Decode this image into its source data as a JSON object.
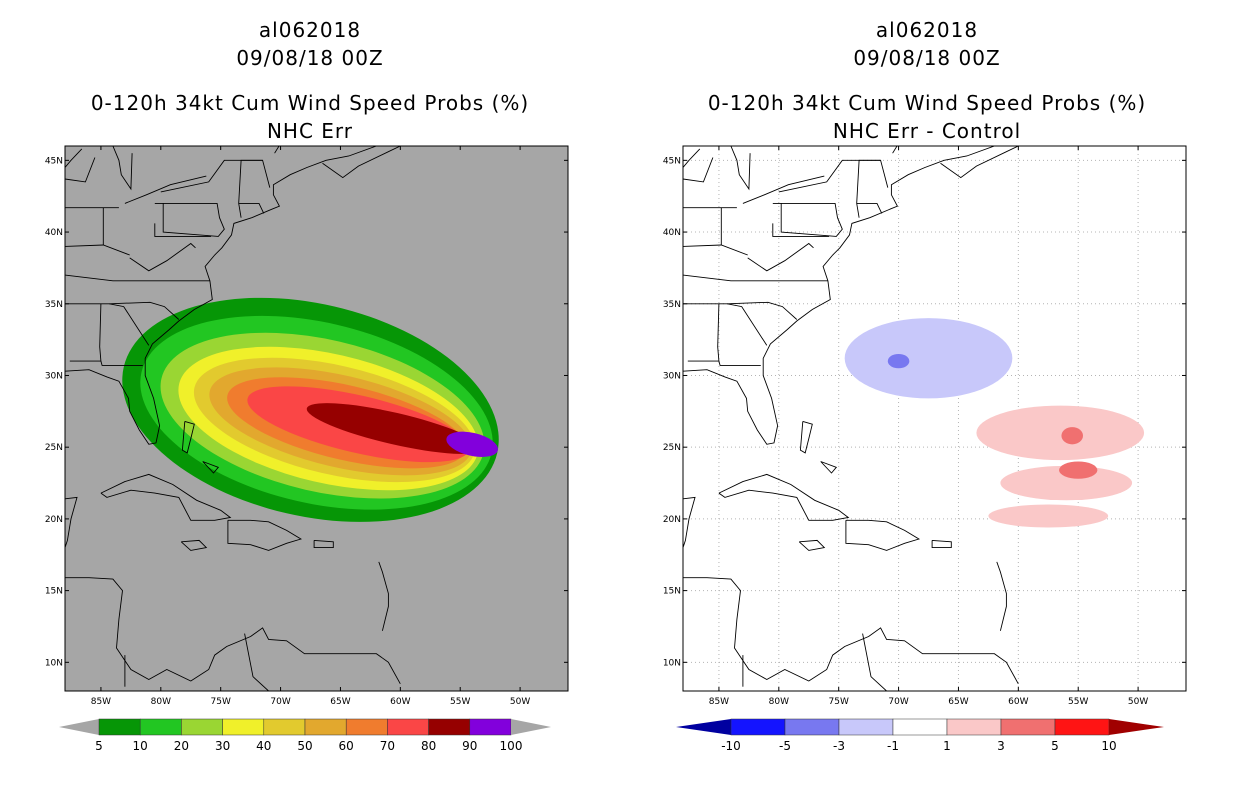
{
  "colors": {
    "land_sea_bg": "#a6a6a6",
    "map_border": "#000000",
    "diff_bg": "#ffffff"
  },
  "chart_data": [
    {
      "type": "heatmap",
      "storm_id": "al062018",
      "date": "09/08/18 00Z",
      "title": "0-120h 34kt Cum Wind Speed Probs (%)",
      "subtitle": "NHC Err",
      "x_ticks": [
        "85W",
        "80W",
        "75W",
        "70W",
        "65W",
        "60W",
        "55W",
        "50W"
      ],
      "y_ticks": [
        "45N",
        "40N",
        "35N",
        "30N",
        "25N",
        "20N",
        "15N",
        "10N"
      ],
      "xlim": [
        -88,
        -46
      ],
      "ylim": [
        8,
        46
      ],
      "colorbar": {
        "labels": [
          "5",
          "10",
          "20",
          "30",
          "40",
          "50",
          "60",
          "70",
          "80",
          "90",
          "100"
        ],
        "colors": [
          "#069606",
          "#22c622",
          "#9ad633",
          "#f0f02a",
          "#e2ca2e",
          "#e2a82e",
          "#f07c2e",
          "#fa4646",
          "#960000",
          "#8200dc"
        ],
        "under": "#a6a6a6",
        "over": "#a6a6a6"
      },
      "contours": [
        {
          "level": 5,
          "color": "#069606",
          "center": [
            -67.5,
            27.6
          ],
          "rx": 16.0,
          "ry": 7.4
        },
        {
          "level": 10,
          "color": "#22c622",
          "center": [
            -67.0,
            27.4
          ],
          "rx": 15.0,
          "ry": 6.3
        },
        {
          "level": 20,
          "color": "#9ad633",
          "center": [
            -66.5,
            27.2
          ],
          "rx": 13.8,
          "ry": 5.3
        },
        {
          "level": 30,
          "color": "#f0f02a",
          "center": [
            -66.0,
            27.0
          ],
          "rx": 12.8,
          "ry": 4.5
        },
        {
          "level": 40,
          "color": "#e2ca2e",
          "center": [
            -65.5,
            26.9
          ],
          "rx": 12.0,
          "ry": 3.8
        },
        {
          "level": 50,
          "color": "#e2a82e",
          "center": [
            -65.0,
            26.8
          ],
          "rx": 11.2,
          "ry": 3.2
        },
        {
          "level": 60,
          "color": "#f07c2e",
          "center": [
            -64.5,
            26.7
          ],
          "rx": 10.2,
          "ry": 2.6
        },
        {
          "level": 70,
          "color": "#fa4646",
          "center": [
            -63.5,
            26.6
          ],
          "rx": 9.5,
          "ry": 2.0
        },
        {
          "level": 80,
          "color": "#960000",
          "center": [
            -60.5,
            26.3
          ],
          "rx": 7.5,
          "ry": 1.1
        },
        {
          "level": 90,
          "color": "#8200dc",
          "center": [
            -54.0,
            25.2
          ],
          "rx": 2.2,
          "ry": 0.8
        }
      ]
    },
    {
      "type": "heatmap",
      "storm_id": "al062018",
      "date": "09/08/18 00Z",
      "title": "0-120h 34kt Cum Wind Speed Probs (%)",
      "subtitle": "NHC Err - Control",
      "x_ticks": [
        "85W",
        "80W",
        "75W",
        "70W",
        "65W",
        "60W",
        "55W",
        "50W"
      ],
      "y_ticks": [
        "45N",
        "40N",
        "35N",
        "30N",
        "25N",
        "20N",
        "15N",
        "10N"
      ],
      "xlim": [
        -88,
        -46
      ],
      "ylim": [
        8,
        46
      ],
      "colorbar": {
        "labels": [
          "-10",
          "-5",
          "-3",
          "-1",
          "1",
          "3",
          "5",
          "10"
        ],
        "colors": [
          "#0000a0",
          "#1414ff",
          "#7878f0",
          "#c8c8fa",
          "#ffffff",
          "#fac8c8",
          "#f07070",
          "#ff1414",
          "#a00000"
        ]
      },
      "contours": [
        {
          "level": -1,
          "color": "#c8c8fa",
          "center": [
            -67.5,
            31.2
          ],
          "rx": 7.0,
          "ry": 2.8
        },
        {
          "level": -3,
          "color": "#7878f0",
          "center": [
            -70.0,
            31.0
          ],
          "rx": 0.9,
          "ry": 0.5
        },
        {
          "level": 1,
          "color": "#fac8c8",
          "center": [
            -56.5,
            26.0
          ],
          "rx": 7.0,
          "ry": 1.9
        },
        {
          "level": 1,
          "color": "#fac8c8",
          "center": [
            -56.0,
            22.5
          ],
          "rx": 5.5,
          "ry": 1.2
        },
        {
          "level": 1,
          "color": "#fac8c8",
          "center": [
            -57.5,
            20.2
          ],
          "rx": 5.0,
          "ry": 0.8
        },
        {
          "level": 3,
          "color": "#f07070",
          "center": [
            -55.5,
            25.8
          ],
          "rx": 0.9,
          "ry": 0.6
        },
        {
          "level": 3,
          "color": "#f07070",
          "center": [
            -55.0,
            23.4
          ],
          "rx": 1.6,
          "ry": 0.6
        }
      ]
    }
  ]
}
